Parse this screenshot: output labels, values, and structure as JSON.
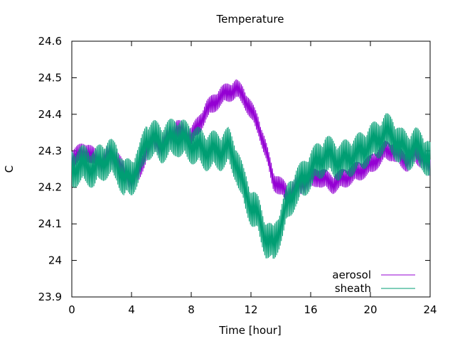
{
  "chart_data": {
    "type": "line",
    "title": "Temperature",
    "xlabel": "Time [hour]",
    "ylabel": "C",
    "xlim": [
      0,
      24
    ],
    "ylim": [
      23.9,
      24.6
    ],
    "xticks": [
      "0",
      "4",
      "8",
      "12",
      "16",
      "20",
      "24"
    ],
    "yticks": [
      "23.9",
      "24",
      "24.1",
      "24.2",
      "24.3",
      "24.4",
      "24.5",
      "24.6"
    ],
    "grid": false,
    "legend_position": "bottom-right",
    "series": [
      {
        "name": "aerosol",
        "color": "#9400d3",
        "x": [
          0,
          0.5,
          1,
          1.5,
          2,
          2.5,
          3,
          3.5,
          4,
          4.5,
          5,
          5.5,
          6,
          6.5,
          7,
          7.5,
          8,
          8.5,
          9,
          9.5,
          10,
          10.5,
          11,
          11.5,
          12,
          12.5,
          13,
          13.5,
          14,
          14.5,
          15,
          15.5,
          16,
          16.5,
          17,
          17.5,
          18,
          18.5,
          19,
          19.5,
          20,
          20.5,
          21,
          21.5,
          22,
          22.5,
          23,
          23.5,
          24
        ],
        "y": [
          24.28,
          24.29,
          24.3,
          24.28,
          24.27,
          24.29,
          24.28,
          24.24,
          24.22,
          24.24,
          24.3,
          24.33,
          24.31,
          24.34,
          24.36,
          24.35,
          24.34,
          24.37,
          24.41,
          24.43,
          24.45,
          24.46,
          24.47,
          24.45,
          24.41,
          24.37,
          24.3,
          24.22,
          24.2,
          24.18,
          24.2,
          24.21,
          24.22,
          24.23,
          24.22,
          24.21,
          24.22,
          24.23,
          24.24,
          24.25,
          24.26,
          24.28,
          24.3,
          24.3,
          24.28,
          24.27,
          24.29,
          24.28,
          24.25
        ]
      },
      {
        "name": "sheath",
        "color": "#009e73",
        "x": [
          0,
          0.5,
          1,
          1.5,
          2,
          2.5,
          3,
          3.5,
          4,
          4.5,
          5,
          5.5,
          6,
          6.5,
          7,
          7.5,
          8,
          8.5,
          9,
          9.5,
          10,
          10.5,
          11,
          11.5,
          12,
          12.5,
          13,
          13.5,
          14,
          14.5,
          15,
          15.5,
          16,
          16.5,
          17,
          17.5,
          18,
          18.5,
          19,
          19.5,
          20,
          20.5,
          21,
          21.5,
          22,
          22.5,
          23,
          23.5,
          24
        ],
        "y": [
          24.25,
          24.26,
          24.26,
          24.25,
          24.27,
          24.28,
          24.27,
          24.22,
          24.23,
          24.26,
          24.33,
          24.33,
          24.32,
          24.33,
          24.34,
          24.33,
          24.32,
          24.31,
          24.3,
          24.3,
          24.3,
          24.31,
          24.27,
          24.2,
          24.15,
          24.12,
          24.06,
          24.04,
          24.1,
          24.16,
          24.2,
          24.22,
          24.25,
          24.27,
          24.29,
          24.28,
          24.27,
          24.28,
          24.29,
          24.3,
          24.32,
          24.33,
          24.35,
          24.34,
          24.31,
          24.3,
          24.31,
          24.3,
          24.27
        ]
      }
    ]
  }
}
